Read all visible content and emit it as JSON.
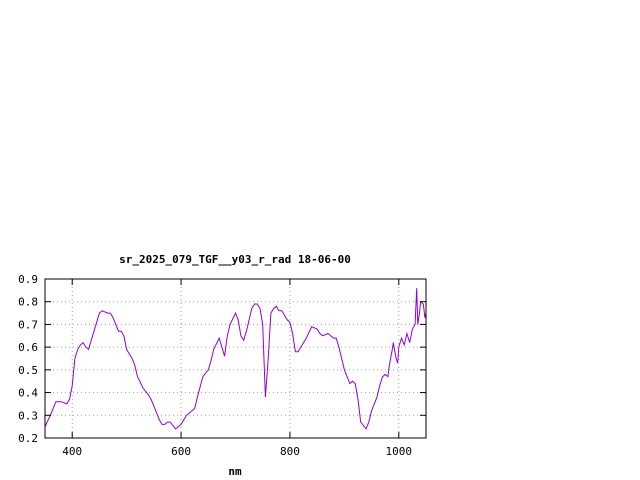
{
  "chart_data": {
    "type": "line",
    "title": "sr_2025_079_TGF__y03_r_rad 18-06-00",
    "xlabel": "nm",
    "ylabel": "",
    "xlim": [
      350,
      1050
    ],
    "ylim": [
      0.2,
      0.9
    ],
    "xticks": [
      400,
      600,
      800,
      1000
    ],
    "yticks": [
      0.2,
      0.3,
      0.4,
      0.5,
      0.6,
      0.7,
      0.8,
      0.9
    ],
    "grid": true,
    "series": [
      {
        "color": "#9400d3",
        "x": [
          350,
          360,
          370,
          380,
          390,
          395,
          400,
          405,
          410,
          415,
          420,
          425,
          430,
          440,
          450,
          455,
          465,
          470,
          475,
          485,
          490,
          495,
          500,
          510,
          515,
          520,
          530,
          540,
          545,
          550,
          560,
          565,
          570,
          575,
          580,
          590,
          595,
          600,
          610,
          620,
          625,
          630,
          640,
          650,
          655,
          660,
          670,
          675,
          680,
          685,
          690,
          700,
          705,
          710,
          715,
          720,
          725,
          730,
          735,
          740,
          745,
          750,
          755,
          760,
          765,
          770,
          775,
          780,
          785,
          790,
          795,
          800,
          805,
          810,
          815,
          820,
          830,
          840,
          850,
          855,
          860,
          870,
          880,
          885,
          890,
          900,
          905,
          910,
          915,
          920,
          925,
          930,
          940,
          945,
          950,
          955,
          960,
          965,
          970,
          975,
          980,
          982,
          985,
          988,
          990,
          995,
          998,
          1000,
          1005,
          1010,
          1015,
          1020,
          1025,
          1030,
          1033,
          1035,
          1038,
          1040,
          1045,
          1048,
          1050
        ],
        "y": [
          0.25,
          0.3,
          0.36,
          0.36,
          0.35,
          0.37,
          0.43,
          0.55,
          0.59,
          0.61,
          0.62,
          0.6,
          0.59,
          0.67,
          0.75,
          0.76,
          0.75,
          0.75,
          0.73,
          0.67,
          0.67,
          0.65,
          0.59,
          0.55,
          0.52,
          0.47,
          0.42,
          0.39,
          0.37,
          0.34,
          0.28,
          0.26,
          0.26,
          0.27,
          0.27,
          0.24,
          0.25,
          0.26,
          0.3,
          0.32,
          0.33,
          0.38,
          0.47,
          0.5,
          0.54,
          0.59,
          0.64,
          0.6,
          0.56,
          0.65,
          0.7,
          0.75,
          0.72,
          0.65,
          0.63,
          0.67,
          0.72,
          0.77,
          0.79,
          0.79,
          0.77,
          0.7,
          0.38,
          0.55,
          0.75,
          0.77,
          0.78,
          0.76,
          0.76,
          0.74,
          0.72,
          0.71,
          0.66,
          0.58,
          0.58,
          0.6,
          0.64,
          0.69,
          0.68,
          0.66,
          0.65,
          0.66,
          0.64,
          0.64,
          0.6,
          0.5,
          0.47,
          0.44,
          0.45,
          0.44,
          0.37,
          0.27,
          0.24,
          0.27,
          0.32,
          0.35,
          0.38,
          0.43,
          0.47,
          0.48,
          0.47,
          0.51,
          0.55,
          0.59,
          0.62,
          0.55,
          0.53,
          0.6,
          0.64,
          0.61,
          0.66,
          0.62,
          0.68,
          0.7,
          0.86,
          0.7,
          0.75,
          0.8,
          0.79,
          0.73,
          0.75
        ]
      }
    ]
  }
}
